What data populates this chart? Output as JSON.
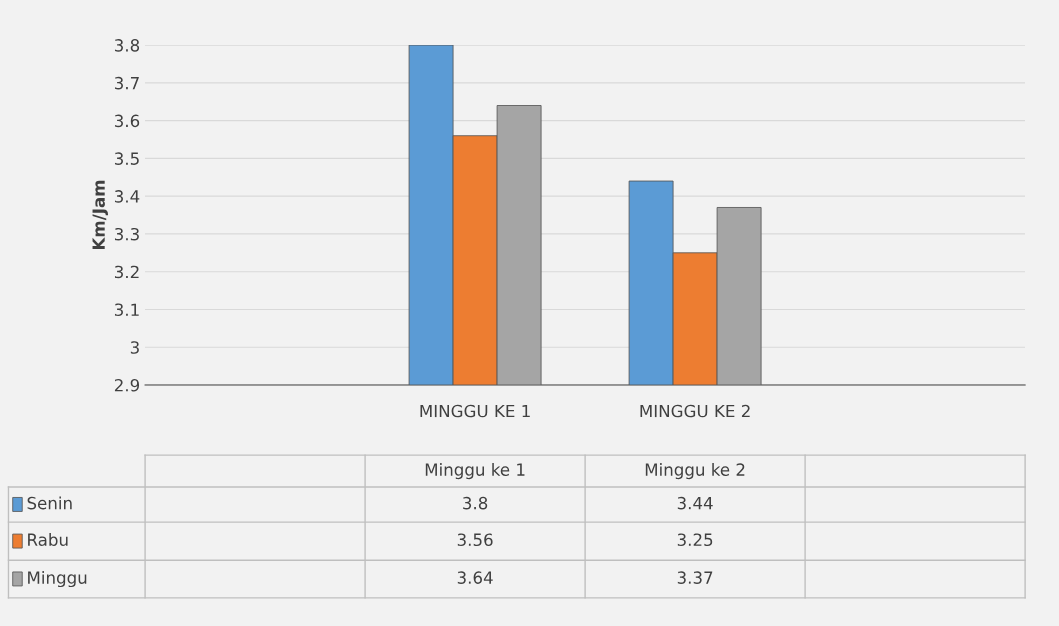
{
  "chart_data": {
    "type": "bar",
    "ylabel": "Km/Jam",
    "categories": [
      null,
      "MINGGU KE 1",
      "MINGGU KE 2",
      null
    ],
    "series": [
      {
        "name": "Senin",
        "color": "#5b9bd5",
        "values": [
          null,
          3.8,
          3.44,
          null
        ]
      },
      {
        "name": "Rabu",
        "color": "#ed7d31",
        "values": [
          null,
          3.56,
          3.25,
          null
        ]
      },
      {
        "name": "Minggu",
        "color": "#a5a5a5",
        "values": [
          null,
          3.64,
          3.37,
          null
        ]
      }
    ],
    "ylim": [
      2.9,
      3.8
    ],
    "yticks": [
      2.9,
      3,
      3.1,
      3.2,
      3.3,
      3.4,
      3.5,
      3.6,
      3.7,
      3.8
    ],
    "grid": "y",
    "legend": "bottom",
    "data_labels": true,
    "annotations": [
      "Minggu ke 1",
      "Minggu ke 2"
    ]
  }
}
